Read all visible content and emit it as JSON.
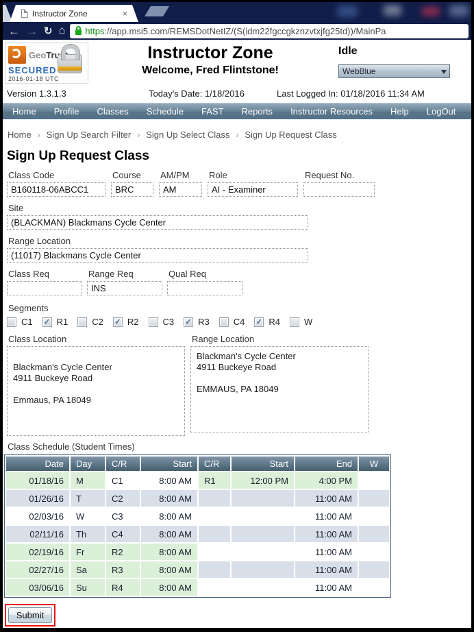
{
  "browser": {
    "tab_title": "Instructor Zone",
    "tab_close": "×",
    "url_scheme": "https",
    "url_rest": "://app.msi5.com/REMSDotNetIZ/(S(idm22fgccgkznzvtxjfg25td))/MainPa",
    "back_icon": "←",
    "forward_icon": "→",
    "reload_icon": "↻",
    "home_icon": "⌂"
  },
  "header": {
    "seal": {
      "brand_geo": "Geo",
      "brand_trust": "Trust",
      "secured": "SECURED",
      "stamp": "2016-01-18 UTC"
    },
    "title": "Instructor Zone",
    "welcome": "Welcome,  Fred Flintstone!",
    "status": "Idle",
    "theme_selected": "WebBlue",
    "version": "Version 1.3.1.3",
    "today": "Today's Date:  1/18/2016",
    "last_logged_in": "Last Logged In:  01/18/2016 11:34 AM"
  },
  "nav": {
    "items": [
      "Home",
      "Profile",
      "Classes",
      "Schedule",
      "FAST",
      "Reports",
      "Instructor Resources",
      "Help",
      "LogOut"
    ]
  },
  "breadcrumb": {
    "items": [
      "Home",
      "Sign Up Search Filter",
      "Sign Up Select Class",
      "Sign Up Request Class"
    ],
    "separator": "›"
  },
  "form": {
    "title": "Sign Up Request Class",
    "class_code": {
      "label": "Class Code",
      "value": "B160118-06ABCC1"
    },
    "course": {
      "label": "Course",
      "value": "BRC"
    },
    "ampm": {
      "label": "AM/PM",
      "value": "AM"
    },
    "role": {
      "label": "Role",
      "value": "AI - Examiner"
    },
    "request_no": {
      "label": "Request No.",
      "value": ""
    },
    "site": {
      "label": "Site",
      "value": "(BLACKMAN) Blackmans Cycle Center"
    },
    "range_location": {
      "label": "Range Location",
      "value": "(11017) Blackmans Cycle Center"
    },
    "class_req": {
      "label": "Class Req",
      "value": ""
    },
    "range_req": {
      "label": "Range Req",
      "value": "INS"
    },
    "qual_req": {
      "label": "Qual Req",
      "value": ""
    },
    "segments": {
      "label": "Segments",
      "options": [
        {
          "label": "C1",
          "checked": false
        },
        {
          "label": "R1",
          "checked": true
        },
        {
          "label": "C2",
          "checked": false
        },
        {
          "label": "R2",
          "checked": true
        },
        {
          "label": "C3",
          "checked": false
        },
        {
          "label": "R3",
          "checked": true
        },
        {
          "label": "C4",
          "checked": false
        },
        {
          "label": "R4",
          "checked": true
        },
        {
          "label": "W",
          "checked": false
        }
      ]
    },
    "class_location": {
      "label": "Class Location",
      "text": "\nBlackman's Cycle Center\n4911 Buckeye Road\n\nEmmaus, PA 18049"
    },
    "range_location_box": {
      "label": "Range Location",
      "text": "Blackman's Cycle Center\n4911 Buckeye Road\n\nEMMAUS, PA 18049"
    }
  },
  "schedule": {
    "label": "Class Schedule (Student Times)",
    "headers": [
      "Date",
      "Day",
      "C/R",
      "Start",
      "C/R",
      "Start",
      "End",
      "W"
    ],
    "rows": [
      {
        "cells": [
          "01/18/16",
          "M",
          "C1",
          "8:00 AM",
          "R1",
          "12:00 PM",
          "4:00 PM",
          ""
        ],
        "bg": [
          "g",
          "g",
          "w",
          "w",
          "g",
          "g",
          "g",
          "w"
        ]
      },
      {
        "cells": [
          "01/26/16",
          "T",
          "C2",
          "8:00 AM",
          "",
          "",
          "11:00 AM",
          ""
        ],
        "bg": [
          "a",
          "a",
          "a",
          "a",
          "a",
          "a",
          "a",
          "a"
        ]
      },
      {
        "cells": [
          "02/03/16",
          "W",
          "C3",
          "8:00 AM",
          "",
          "",
          "11:00 AM",
          ""
        ],
        "bg": [
          "w",
          "w",
          "w",
          "w",
          "w",
          "w",
          "w",
          "w"
        ]
      },
      {
        "cells": [
          "02/11/16",
          "Th",
          "C4",
          "8:00 AM",
          "",
          "",
          "11:00 AM",
          ""
        ],
        "bg": [
          "a",
          "a",
          "a",
          "a",
          "a",
          "a",
          "a",
          "a"
        ]
      },
      {
        "cells": [
          "02/19/16",
          "Fr",
          "R2",
          "8:00 AM",
          "",
          "",
          "11:00 AM",
          ""
        ],
        "bg": [
          "g",
          "g",
          "g",
          "g",
          "w",
          "w",
          "w",
          "w"
        ]
      },
      {
        "cells": [
          "02/27/16",
          "Sa",
          "R3",
          "8:00 AM",
          "",
          "",
          "11:00 AM",
          ""
        ],
        "bg": [
          "g",
          "g",
          "g",
          "g",
          "a",
          "a",
          "a",
          "a"
        ]
      },
      {
        "cells": [
          "03/06/16",
          "Su",
          "R4",
          "8:00 AM",
          "",
          "",
          "11:00 AM",
          ""
        ],
        "bg": [
          "g",
          "g",
          "g",
          "g",
          "w",
          "w",
          "w",
          "w"
        ]
      }
    ]
  },
  "submit_label": "Submit",
  "colors": {
    "chrome_bg": "#101d49",
    "nav_gradient_top": "#93aaba",
    "nav_gradient_bottom": "#51708a",
    "row_green": "#dcefd9",
    "row_alt": "#d9dfe8",
    "table_header": "#5c7689",
    "https_green": "#0b8a0e",
    "secured_blue": "#2e6cb4",
    "seal_orange": "#ef8722",
    "submit_outline_red": "#e81313"
  }
}
